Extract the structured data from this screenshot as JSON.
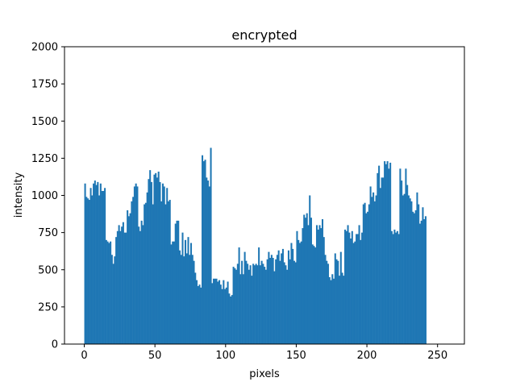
{
  "chart_data": {
    "type": "bar",
    "title": "encrypted",
    "xlabel": "pixels",
    "ylabel": "intensity",
    "xlim": [
      -14,
      269
    ],
    "ylim": [
      0,
      2000
    ],
    "xticks": [
      0,
      50,
      100,
      150,
      200,
      250
    ],
    "yticks": [
      0,
      250,
      500,
      750,
      1000,
      1250,
      1500,
      1750,
      2000
    ],
    "grid": false,
    "bar_color": "#1f77b4",
    "x_start": 0,
    "bin_width": 1,
    "values": [
      1080,
      990,
      980,
      970,
      1050,
      1000,
      1080,
      1100,
      1070,
      1090,
      1000,
      1080,
      1030,
      1030,
      1050,
      700,
      690,
      680,
      690,
      600,
      540,
      590,
      720,
      760,
      800,
      760,
      790,
      820,
      750,
      750,
      900,
      860,
      880,
      960,
      990,
      1060,
      1080,
      1060,
      790,
      760,
      830,
      800,
      940,
      950,
      1020,
      1110,
      1170,
      1090,
      940,
      1140,
      1150,
      1120,
      1160,
      1090,
      960,
      1080,
      1060,
      940,
      1050,
      960,
      970,
      670,
      690,
      690,
      810,
      830,
      830,
      630,
      600,
      750,
      590,
      700,
      610,
      720,
      600,
      680,
      600,
      560,
      480,
      430,
      390,
      400,
      380,
      1270,
      1230,
      1240,
      1120,
      1100,
      1060,
      1320,
      410,
      440,
      440,
      440,
      420,
      430,
      400,
      370,
      430,
      370,
      380,
      420,
      340,
      320,
      330,
      520,
      510,
      500,
      540,
      650,
      470,
      560,
      470,
      620,
      560,
      540,
      500,
      530,
      460,
      540,
      530,
      540,
      530,
      650,
      530,
      560,
      540,
      520,
      500,
      570,
      620,
      580,
      600,
      580,
      490,
      570,
      600,
      630,
      560,
      610,
      640,
      550,
      530,
      500,
      630,
      570,
      680,
      640,
      560,
      550,
      760,
      700,
      680,
      690,
      780,
      870,
      850,
      880,
      800,
      1000,
      850,
      670,
      660,
      650,
      800,
      770,
      800,
      780,
      840,
      720,
      600,
      560,
      540,
      450,
      430,
      470,
      440,
      610,
      570,
      560,
      460,
      620,
      480,
      460,
      770,
      760,
      800,
      750,
      710,
      760,
      680,
      690,
      740,
      740,
      800,
      700,
      750,
      940,
      950,
      880,
      890,
      940,
      1060,
      990,
      1020,
      960,
      1000,
      1150,
      1200,
      1050,
      1120,
      1120,
      1230,
      1210,
      1230,
      1180,
      1220,
      760,
      740,
      770,
      750,
      760,
      740,
      1180,
      1100,
      1000,
      1010,
      1180,
      1070,
      1000,
      980,
      960,
      890,
      880,
      900,
      1020,
      940,
      810,
      830,
      920,
      840,
      860
    ]
  }
}
